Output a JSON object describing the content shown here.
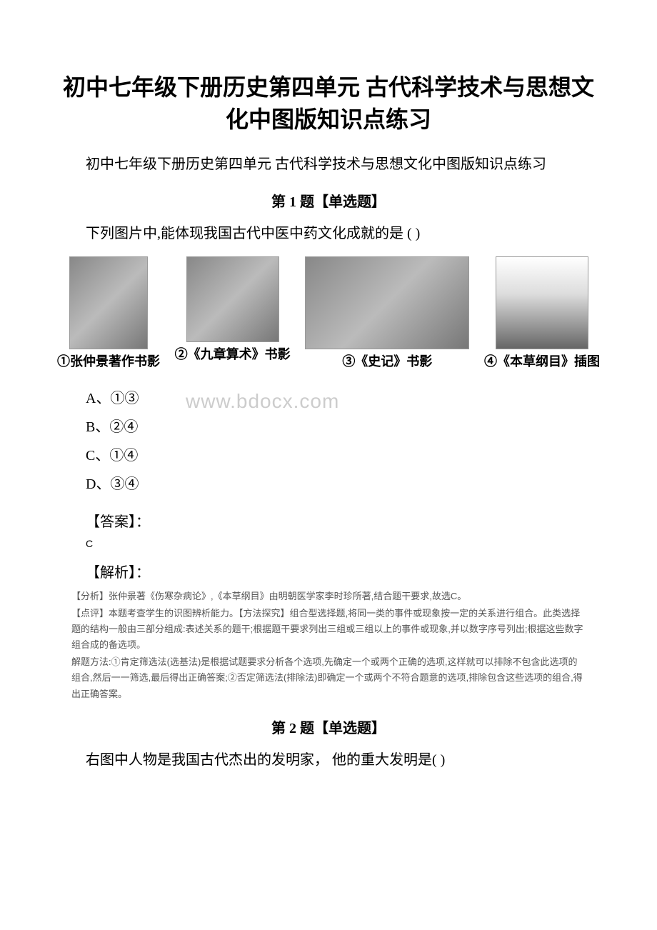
{
  "title": "初中七年级下册历史第四单元 古代科学技术与思想文化中图版知识点练习",
  "subtitle": "初中七年级下册历史第四单元 古代科学技术与思想文化中图版知识点练习",
  "q1": {
    "header": "第 1 题【单选题】",
    "text": "下列图片中,能体现我国古代中医中药文化成就的是 ( )",
    "captions": {
      "c1": "①张仲景著作书影",
      "c2": "②《九章算术》书影",
      "c3": "③《史记》书影",
      "c4": "④《本草纲目》插图"
    },
    "options": {
      "a": "A、①③",
      "b": "B、②④",
      "c": "C、①④",
      "d": "D、③④"
    },
    "watermark": "www.bdocx.com",
    "answer_label": "【答案】：",
    "answer_value": "C",
    "analysis_label": "【解析】：",
    "analysis": {
      "p1": "【分析】张仲景著《伤寒杂病论》,《本草纲目》由明朝医学家李时珍所著,结合题干要求,故选C。",
      "p2": "【点评】本题考查学生的识图辨析能力。【方法探究】组合型选择题,将同一类的事件或现象按一定的关系进行组合。此类选择题的结构一般由三部分组成:表述关系的题干;根据题干要求列出三组或三组以上的事件或现象,并以数字序号列出;根据这些数字组合成的备选项。",
      "p3": "解题方法:①肯定筛选法(选基法)是根据试题要求分析各个选项,先确定一个或两个正确的选项,这样就可以排除不包含此选项的组合,然后一一筛选,最后得出正确答案;②否定筛选法(排除法)即确定一个或两个不符合题意的选项,排除包含这些选项的组合,得出正确答案。"
    }
  },
  "q2": {
    "header": "第 2 题【单选题】",
    "text": "右图中人物是我国古代杰出的发明家， 他的重大发明是( )"
  }
}
